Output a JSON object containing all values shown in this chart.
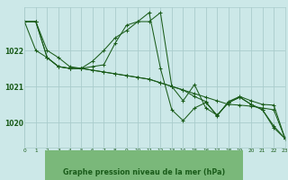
{
  "bg_color": "#cce8e8",
  "plot_bg": "#cce8e8",
  "grid_color": "#aacccc",
  "line_color": "#1a5c1a",
  "xlabel": "Graphe pression niveau de la mer (hPa)",
  "xlabel_bg": "#7ab87a",
  "xlabel_color": "#1a5c1a",
  "xlim": [
    0,
    23
  ],
  "ylim": [
    1019.3,
    1023.2
  ],
  "ytick_vals": [
    1020,
    1021,
    1022
  ],
  "xtick_vals": [
    0,
    1,
    2,
    3,
    4,
    5,
    6,
    7,
    8,
    9,
    10,
    11,
    12,
    13,
    14,
    15,
    16,
    17,
    18,
    19,
    20,
    21,
    22,
    23
  ],
  "series": [
    [
      1022.8,
      1022.8,
      1022.0,
      1021.8,
      1021.55,
      1021.5,
      1021.55,
      1021.6,
      1022.2,
      1022.7,
      1022.8,
      1022.8,
      1023.05,
      1021.0,
      1020.6,
      1021.05,
      1020.4,
      1020.2,
      1020.55,
      1020.7,
      1020.5,
      1020.35,
      1019.85,
      1019.55
    ],
    [
      1022.8,
      1022.0,
      1021.8,
      1021.55,
      1021.5,
      1021.5,
      1021.7,
      1022.0,
      1022.35,
      1022.55,
      1022.8,
      1023.05,
      1021.5,
      1020.35,
      1020.05,
      1020.4,
      1020.55,
      1020.2,
      1020.55,
      1020.7,
      1020.5,
      1020.35,
      1019.9,
      1019.55
    ],
    [
      1022.8,
      1022.8,
      1021.8,
      1021.55,
      1021.5,
      1021.5,
      1021.45,
      1021.4,
      1021.35,
      1021.3,
      1021.25,
      1021.2,
      1021.1,
      1021.0,
      1020.9,
      1020.8,
      1020.7,
      1020.6,
      1020.5,
      1020.48,
      1020.45,
      1020.4,
      1020.35,
      1019.55
    ],
    [
      1022.8,
      1022.8,
      1021.8,
      1021.55,
      1021.5,
      1021.5,
      1021.45,
      1021.4,
      1021.35,
      1021.3,
      1021.25,
      1021.2,
      1021.1,
      1021.0,
      1020.9,
      1020.72,
      1020.58,
      1020.18,
      1020.58,
      1020.72,
      1020.6,
      1020.5,
      1020.48,
      1019.55
    ]
  ],
  "figsize": [
    3.2,
    2.0
  ],
  "dpi": 100
}
